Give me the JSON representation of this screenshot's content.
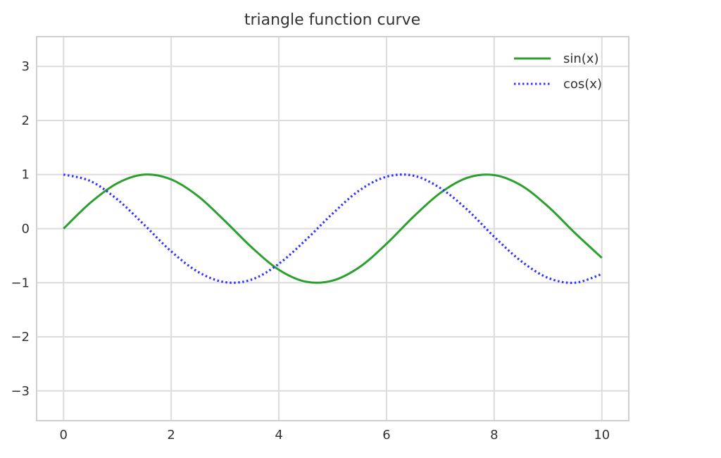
{
  "chart_data": {
    "type": "line",
    "title": "triangle function curve",
    "xlabel": "",
    "ylabel": "",
    "xlim": [
      -0.5,
      10.5
    ],
    "ylim": [
      -3.55,
      3.55
    ],
    "x_ticks": [
      0,
      2,
      4,
      6,
      8,
      10
    ],
    "x_tick_labels": [
      "0",
      "2",
      "4",
      "6",
      "8",
      "10"
    ],
    "y_ticks": [
      3,
      2,
      1,
      0,
      -1,
      -2,
      -3
    ],
    "y_tick_labels": [
      "3",
      "2",
      "1",
      "0",
      "−1",
      "−2",
      "−3"
    ],
    "grid": true,
    "legend_position": "top-right",
    "x": [
      0,
      0.5,
      1,
      1.5,
      2,
      2.5,
      3,
      3.5,
      4,
      4.5,
      5,
      5.5,
      6,
      6.5,
      7,
      7.5,
      8,
      8.5,
      9,
      9.5,
      10
    ],
    "series": [
      {
        "name": "sin(x)",
        "color": "#2ca02c",
        "style": "solid",
        "values": [
          0,
          0.48,
          0.84,
          1.0,
          0.91,
          0.6,
          0.14,
          -0.35,
          -0.76,
          -0.98,
          -0.96,
          -0.71,
          -0.28,
          0.22,
          0.66,
          0.94,
          0.99,
          0.8,
          0.41,
          -0.08,
          -0.54
        ]
      },
      {
        "name": "cos(x)",
        "color": "#3333ff",
        "style": "dotted",
        "values": [
          1.0,
          0.88,
          0.54,
          0.07,
          -0.42,
          -0.8,
          -0.99,
          -0.94,
          -0.65,
          -0.21,
          0.28,
          0.71,
          0.96,
          0.98,
          0.75,
          0.35,
          -0.15,
          -0.6,
          -0.91,
          -1.0,
          -0.84
        ]
      }
    ]
  }
}
